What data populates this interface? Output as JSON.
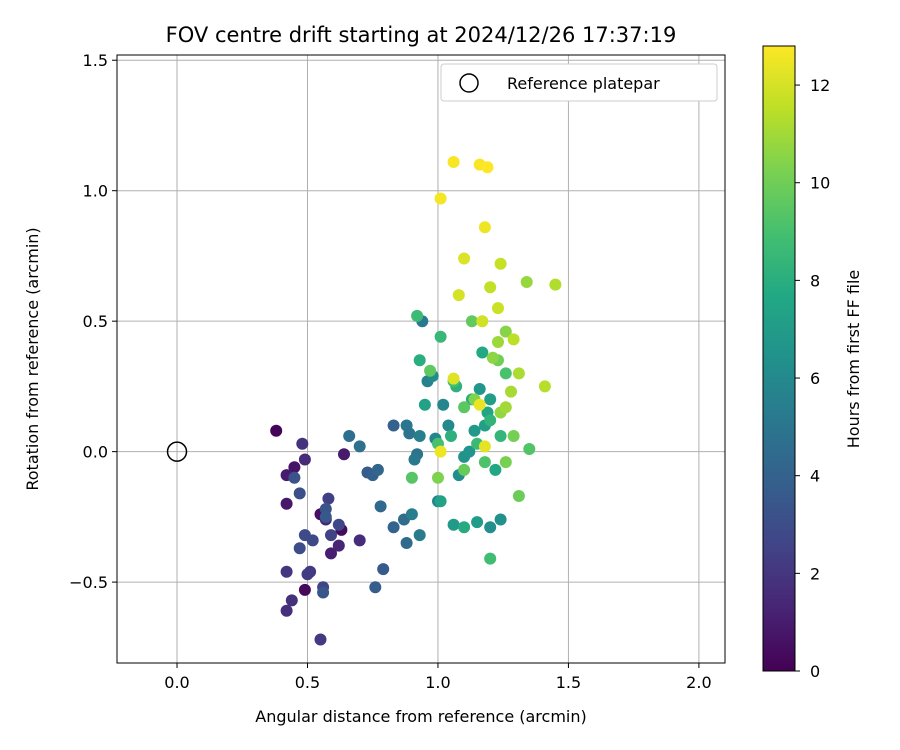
{
  "chart_data": {
    "type": "scatter",
    "title": "FOV centre drift starting at 2024/12/26 17:37:19",
    "xlabel": "Angular distance from reference (arcmin)",
    "ylabel": "Rotation from reference (arcmin)",
    "xlim": [
      -0.23,
      2.1
    ],
    "ylim": [
      -0.81,
      1.52
    ],
    "xticks": [
      0.0,
      0.5,
      1.0,
      1.5,
      2.0
    ],
    "xtick_labels": [
      "0.0",
      "0.5",
      "1.0",
      "1.5",
      "2.0"
    ],
    "yticks": [
      -0.5,
      0.0,
      0.5,
      1.0,
      1.5
    ],
    "ytick_labels": [
      "−0.5",
      "0.0",
      "0.5",
      "1.0",
      "1.5"
    ],
    "grid": true,
    "legend": {
      "position": "top-right",
      "entries": [
        "Reference platepar"
      ]
    },
    "reference_point": {
      "x": 0.0,
      "y": 0.0,
      "label": "Reference platepar"
    },
    "colorbar": {
      "label": "Hours from first FF file",
      "colormap": "viridis",
      "range": [
        0,
        12.8
      ],
      "ticks": [
        0,
        2,
        4,
        6,
        8,
        10,
        12
      ],
      "tick_labels": [
        "0",
        "2",
        "4",
        "6",
        "8",
        "10",
        "12"
      ]
    },
    "points": [
      {
        "x": 0.38,
        "y": 0.08,
        "c": 0.1
      },
      {
        "x": 0.49,
        "y": -0.53,
        "c": 0.3
      },
      {
        "x": 0.63,
        "y": -0.3,
        "c": 0.4
      },
      {
        "x": 0.55,
        "y": -0.24,
        "c": 0.5
      },
      {
        "x": 0.45,
        "y": -0.06,
        "c": 0.7
      },
      {
        "x": 0.42,
        "y": -0.2,
        "c": 0.8
      },
      {
        "x": 0.64,
        "y": -0.01,
        "c": 0.9
      },
      {
        "x": 0.42,
        "y": -0.09,
        "c": 1.0
      },
      {
        "x": 0.59,
        "y": -0.39,
        "c": 1.1
      },
      {
        "x": 0.62,
        "y": -0.36,
        "c": 1.3
      },
      {
        "x": 0.57,
        "y": -0.26,
        "c": 1.4
      },
      {
        "x": 0.49,
        "y": -0.03,
        "c": 1.5
      },
      {
        "x": 0.7,
        "y": -0.34,
        "c": 1.6
      },
      {
        "x": 0.42,
        "y": -0.61,
        "c": 1.7
      },
      {
        "x": 0.44,
        "y": -0.57,
        "c": 1.8
      },
      {
        "x": 0.48,
        "y": 0.03,
        "c": 1.9
      },
      {
        "x": 0.42,
        "y": -0.46,
        "c": 2.0
      },
      {
        "x": 0.51,
        "y": -0.46,
        "c": 2.1
      },
      {
        "x": 0.55,
        "y": -0.72,
        "c": 2.2
      },
      {
        "x": 0.5,
        "y": -0.47,
        "c": 2.3
      },
      {
        "x": 0.58,
        "y": -0.18,
        "c": 2.4
      },
      {
        "x": 0.59,
        "y": -0.32,
        "c": 2.5
      },
      {
        "x": 0.56,
        "y": -0.52,
        "c": 2.6
      },
      {
        "x": 0.62,
        "y": -0.28,
        "c": 2.7
      },
      {
        "x": 0.52,
        "y": -0.34,
        "c": 2.8
      },
      {
        "x": 0.49,
        "y": -0.32,
        "c": 2.9
      },
      {
        "x": 0.47,
        "y": -0.37,
        "c": 3.0
      },
      {
        "x": 0.47,
        "y": -0.16,
        "c": 3.1
      },
      {
        "x": 0.45,
        "y": -0.1,
        "c": 3.2
      },
      {
        "x": 0.57,
        "y": -0.22,
        "c": 3.3
      },
      {
        "x": 0.56,
        "y": -0.54,
        "c": 3.4
      },
      {
        "x": 0.57,
        "y": -0.25,
        "c": 3.5
      },
      {
        "x": 0.79,
        "y": -0.45,
        "c": 3.6
      },
      {
        "x": 0.73,
        "y": -0.08,
        "c": 3.7
      },
      {
        "x": 0.76,
        "y": -0.52,
        "c": 3.8
      },
      {
        "x": 0.75,
        "y": -0.09,
        "c": 3.9
      },
      {
        "x": 0.83,
        "y": 0.1,
        "c": 4.0
      },
      {
        "x": 0.83,
        "y": -0.29,
        "c": 4.1
      },
      {
        "x": 0.77,
        "y": -0.07,
        "c": 4.2
      },
      {
        "x": 0.78,
        "y": -0.21,
        "c": 4.3
      },
      {
        "x": 0.88,
        "y": -0.35,
        "c": 4.4
      },
      {
        "x": 0.87,
        "y": -0.26,
        "c": 4.5
      },
      {
        "x": 0.66,
        "y": 0.06,
        "c": 4.6
      },
      {
        "x": 0.7,
        "y": 0.02,
        "c": 4.7
      },
      {
        "x": 0.89,
        "y": 0.07,
        "c": 4.8
      },
      {
        "x": 0.92,
        "y": -0.01,
        "c": 4.9
      },
      {
        "x": 0.88,
        "y": 0.1,
        "c": 5.0
      },
      {
        "x": 0.91,
        "y": -0.03,
        "c": 5.1
      },
      {
        "x": 0.94,
        "y": 0.5,
        "c": 5.2
      },
      {
        "x": 0.93,
        "y": -0.32,
        "c": 5.3
      },
      {
        "x": 0.9,
        "y": -0.24,
        "c": 5.4
      },
      {
        "x": 0.93,
        "y": 0.06,
        "c": 5.5
      },
      {
        "x": 0.96,
        "y": 0.27,
        "c": 5.6
      },
      {
        "x": 1.0,
        "y": -0.19,
        "c": 5.7
      },
      {
        "x": 0.99,
        "y": 0.05,
        "c": 5.8
      },
      {
        "x": 1.02,
        "y": 0.18,
        "c": 5.9
      },
      {
        "x": 1.04,
        "y": 0.1,
        "c": 6.0
      },
      {
        "x": 0.98,
        "y": 0.29,
        "c": 6.1
      },
      {
        "x": 1.08,
        "y": -0.09,
        "c": 6.2
      },
      {
        "x": 1.2,
        "y": -0.29,
        "c": 6.3
      },
      {
        "x": 1.24,
        "y": -0.26,
        "c": 6.4
      },
      {
        "x": 1.1,
        "y": -0.02,
        "c": 6.5
      },
      {
        "x": 1.12,
        "y": 0.0,
        "c": 6.6
      },
      {
        "x": 1.16,
        "y": 0.24,
        "c": 6.7
      },
      {
        "x": 1.14,
        "y": 0.08,
        "c": 6.8
      },
      {
        "x": 1.06,
        "y": -0.28,
        "c": 6.9
      },
      {
        "x": 1.15,
        "y": -0.27,
        "c": 7.0
      },
      {
        "x": 1.2,
        "y": 0.2,
        "c": 7.1
      },
      {
        "x": 1.18,
        "y": 0.1,
        "c": 7.2
      },
      {
        "x": 0.95,
        "y": 0.18,
        "c": 7.3
      },
      {
        "x": 1.01,
        "y": -0.19,
        "c": 7.4
      },
      {
        "x": 1.19,
        "y": 0.15,
        "c": 7.5
      },
      {
        "x": 1.22,
        "y": -0.07,
        "c": 7.6
      },
      {
        "x": 1.17,
        "y": 0.38,
        "c": 7.7
      },
      {
        "x": 1.1,
        "y": -0.29,
        "c": 7.8
      },
      {
        "x": 1.13,
        "y": 0.2,
        "c": 7.9
      },
      {
        "x": 0.93,
        "y": 0.35,
        "c": 8.0
      },
      {
        "x": 1.05,
        "y": 0.06,
        "c": 8.1
      },
      {
        "x": 1.07,
        "y": 0.25,
        "c": 8.2
      },
      {
        "x": 1.2,
        "y": 0.12,
        "c": 8.3
      },
      {
        "x": 1.24,
        "y": 0.06,
        "c": 8.4
      },
      {
        "x": 1.01,
        "y": 0.44,
        "c": 8.5
      },
      {
        "x": 1.15,
        "y": 0.03,
        "c": 8.6
      },
      {
        "x": 0.92,
        "y": 0.52,
        "c": 8.7
      },
      {
        "x": 1.2,
        "y": -0.41,
        "c": 8.8
      },
      {
        "x": 1.06,
        "y": 0.27,
        "c": 8.9
      },
      {
        "x": 1.0,
        "y": 0.03,
        "c": 9.0
      },
      {
        "x": 1.26,
        "y": 0.3,
        "c": 9.1
      },
      {
        "x": 1.18,
        "y": -0.04,
        "c": 9.2
      },
      {
        "x": 1.35,
        "y": 0.01,
        "c": 9.3
      },
      {
        "x": 0.9,
        "y": -0.1,
        "c": 9.4
      },
      {
        "x": 1.1,
        "y": 0.17,
        "c": 9.5
      },
      {
        "x": 0.97,
        "y": 0.31,
        "c": 9.6
      },
      {
        "x": 1.13,
        "y": 0.5,
        "c": 9.7
      },
      {
        "x": 1.1,
        "y": -0.07,
        "c": 9.8
      },
      {
        "x": 1.31,
        "y": -0.17,
        "c": 9.9
      },
      {
        "x": 1.23,
        "y": 0.35,
        "c": 10.0
      },
      {
        "x": 1.29,
        "y": 0.06,
        "c": 10.1
      },
      {
        "x": 1.26,
        "y": -0.04,
        "c": 10.2
      },
      {
        "x": 1.0,
        "y": -0.1,
        "c": 10.3
      },
      {
        "x": 1.14,
        "y": 0.2,
        "c": 10.4
      },
      {
        "x": 1.26,
        "y": 0.46,
        "c": 10.5
      },
      {
        "x": 1.21,
        "y": 0.36,
        "c": 10.6
      },
      {
        "x": 1.24,
        "y": 0.15,
        "c": 10.7
      },
      {
        "x": 1.34,
        "y": 0.65,
        "c": 10.8
      },
      {
        "x": 1.23,
        "y": 0.42,
        "c": 10.9
      },
      {
        "x": 1.26,
        "y": 0.17,
        "c": 11.0
      },
      {
        "x": 1.28,
        "y": 0.23,
        "c": 11.1
      },
      {
        "x": 1.31,
        "y": 0.3,
        "c": 11.2
      },
      {
        "x": 1.45,
        "y": 0.64,
        "c": 11.3
      },
      {
        "x": 1.41,
        "y": 0.25,
        "c": 11.4
      },
      {
        "x": 1.29,
        "y": 0.43,
        "c": 11.5
      },
      {
        "x": 1.2,
        "y": 0.63,
        "c": 11.6
      },
      {
        "x": 1.24,
        "y": 0.72,
        "c": 11.7
      },
      {
        "x": 1.23,
        "y": 0.55,
        "c": 11.8
      },
      {
        "x": 1.17,
        "y": 0.5,
        "c": 11.9
      },
      {
        "x": 1.08,
        "y": 0.6,
        "c": 12.0
      },
      {
        "x": 1.1,
        "y": 0.74,
        "c": 12.1
      },
      {
        "x": 1.06,
        "y": 0.28,
        "c": 12.2
      },
      {
        "x": 1.18,
        "y": 0.02,
        "c": 12.3
      },
      {
        "x": 1.16,
        "y": 0.18,
        "c": 12.4
      },
      {
        "x": 1.01,
        "y": 0.0,
        "c": 12.5
      },
      {
        "x": 1.18,
        "y": 0.86,
        "c": 12.5
      },
      {
        "x": 1.01,
        "y": 0.97,
        "c": 12.6
      },
      {
        "x": 1.06,
        "y": 1.11,
        "c": 12.7
      },
      {
        "x": 1.16,
        "y": 1.1,
        "c": 12.7
      },
      {
        "x": 1.19,
        "y": 1.09,
        "c": 12.8
      }
    ]
  }
}
